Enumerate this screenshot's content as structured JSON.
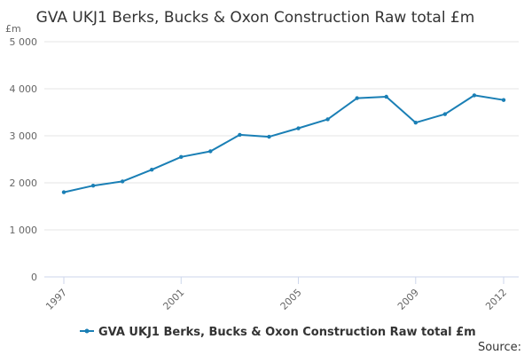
{
  "chart_data": {
    "type": "line",
    "title": "GVA UKJ1 Berks, Bucks & Oxon Construction Raw total £m",
    "ylabel": "£m",
    "xlabel": "",
    "ylim": [
      0,
      5000
    ],
    "y_ticks": [
      0,
      1000,
      2000,
      3000,
      4000,
      5000
    ],
    "y_tick_labels": [
      "0",
      "1 000",
      "2 000",
      "3 000",
      "4 000",
      "5 000"
    ],
    "x_tick_labels": [
      "1997",
      "2001",
      "2005",
      "2009",
      "2012"
    ],
    "grid": true,
    "legend_position": "bottom",
    "series": [
      {
        "name": "GVA UKJ1 Berks, Bucks & Oxon Construction Raw total £m",
        "color": "#1a7fb5",
        "x": [
          1997,
          1998,
          1999,
          2000,
          2001,
          2002,
          2003,
          2004,
          2005,
          2006,
          2007,
          2008,
          2009,
          2010,
          2011,
          2012
        ],
        "values": [
          1800,
          1940,
          2030,
          2280,
          2550,
          2670,
          3020,
          2980,
          3160,
          3350,
          3800,
          3830,
          3280,
          3460,
          3860,
          3760
        ]
      }
    ]
  },
  "footer": {
    "source_label": "Source:"
  }
}
